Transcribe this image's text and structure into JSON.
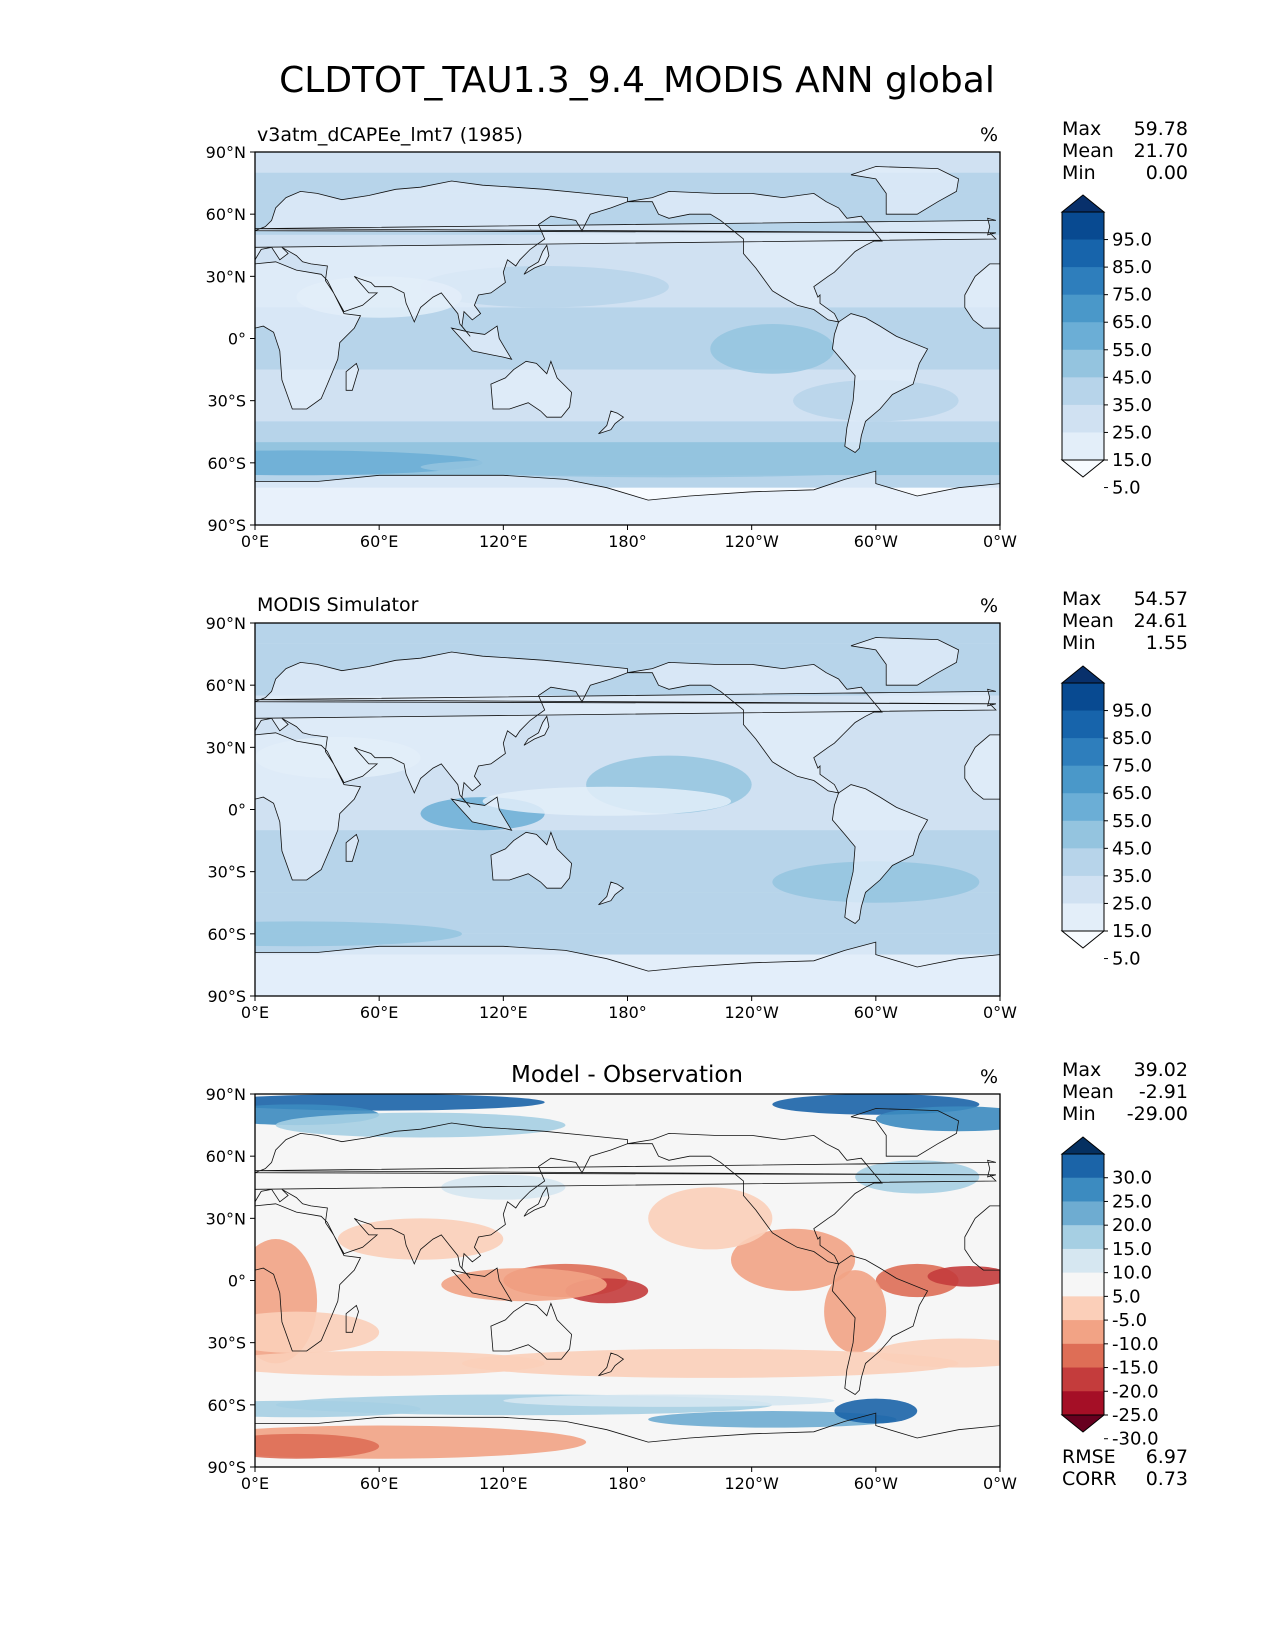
{
  "suptitle": "CLDTOT_TAU1.3_9.4_MODIS ANN global",
  "x_ticks": [
    "0°E",
    "60°E",
    "120°E",
    "180°",
    "120°W",
    "60°W",
    "0°W"
  ],
  "y_ticks": [
    "90°N",
    "60°N",
    "30°N",
    "0°",
    "30°S",
    "60°S",
    "90°S"
  ],
  "panels": [
    {
      "title_left": "v3atm_dCAPEe_lmt7 (1985)",
      "title_center": "",
      "units": "%",
      "stats": [
        {
          "label": "Max",
          "value": "59.78"
        },
        {
          "label": "Mean",
          "value": "21.70"
        },
        {
          "label": "Min",
          "value": "0.00"
        }
      ],
      "colorbar": {
        "tick_labels": [
          "95.0",
          "85.0",
          "75.0",
          "65.0",
          "55.0",
          "45.0",
          "35.0",
          "25.0",
          "15.0",
          "5.0"
        ],
        "colors": [
          "#f7fbff",
          "#e3eef9",
          "#d0e1f2",
          "#b7d4ea",
          "#94c4df",
          "#6baed6",
          "#4a98c9",
          "#2e7ebc",
          "#1764ab",
          "#084a91",
          "#08306b"
        ]
      }
    },
    {
      "title_left": "MODIS Simulator",
      "title_center": "",
      "units": "%",
      "stats": [
        {
          "label": "Max",
          "value": "54.57"
        },
        {
          "label": "Mean",
          "value": "24.61"
        },
        {
          "label": "Min",
          "value": "1.55"
        }
      ],
      "colorbar": {
        "tick_labels": [
          "95.0",
          "85.0",
          "75.0",
          "65.0",
          "55.0",
          "45.0",
          "35.0",
          "25.0",
          "15.0",
          "5.0"
        ],
        "colors": [
          "#f7fbff",
          "#e3eef9",
          "#d0e1f2",
          "#b7d4ea",
          "#94c4df",
          "#6baed6",
          "#4a98c9",
          "#2e7ebc",
          "#1764ab",
          "#084a91",
          "#08306b"
        ]
      }
    },
    {
      "title_left": "",
      "title_center": "Model - Observation",
      "units": "%",
      "stats": [
        {
          "label": "Max",
          "value": "39.02"
        },
        {
          "label": "Mean",
          "value": "-2.91"
        },
        {
          "label": "Min",
          "value": "-29.00"
        }
      ],
      "colorbar": {
        "tick_labels": [
          "30.0",
          "25.0",
          "20.0",
          "15.0",
          "10.0",
          "5.0",
          "-5.0",
          "-10.0",
          "-15.0",
          "-20.0",
          "-25.0",
          "-30.0"
        ],
        "colors": [
          "#67001f",
          "#a50f26",
          "#c43c3c",
          "#de6e56",
          "#f2a385",
          "#fbcfb9",
          "#f6f6f6",
          "#d6e7f1",
          "#a6cfe3",
          "#6eacd1",
          "#3c8bc0",
          "#1b64a8",
          "#053061"
        ]
      },
      "extra_stats": [
        {
          "label": "RMSE",
          "value": "6.97"
        },
        {
          "label": "CORR",
          "value": "0.73"
        }
      ]
    }
  ],
  "chart_data": {
    "type": "heatmap",
    "title": "CLDTOT_TAU1.3_9.4_MODIS ANN global",
    "maps": [
      {
        "name": "v3atm_dCAPEe_lmt7 (1985)",
        "units": "%",
        "max": 59.78,
        "mean": 21.7,
        "min": 0.0,
        "levels": [
          5,
          15,
          25,
          35,
          45,
          55,
          65,
          75,
          85,
          95
        ]
      },
      {
        "name": "MODIS Simulator",
        "units": "%",
        "max": 54.57,
        "mean": 24.61,
        "min": 1.55,
        "levels": [
          5,
          15,
          25,
          35,
          45,
          55,
          65,
          75,
          85,
          95
        ]
      },
      {
        "name": "Model - Observation",
        "units": "%",
        "max": 39.02,
        "mean": -2.91,
        "min": -29.0,
        "rmse": 6.97,
        "corr": 0.73,
        "levels": [
          -30,
          -25,
          -20,
          -15,
          -10,
          -5,
          5,
          10,
          15,
          20,
          25,
          30
        ]
      }
    ],
    "x_range": [
      0,
      360
    ],
    "y_range": [
      -90,
      90
    ]
  }
}
